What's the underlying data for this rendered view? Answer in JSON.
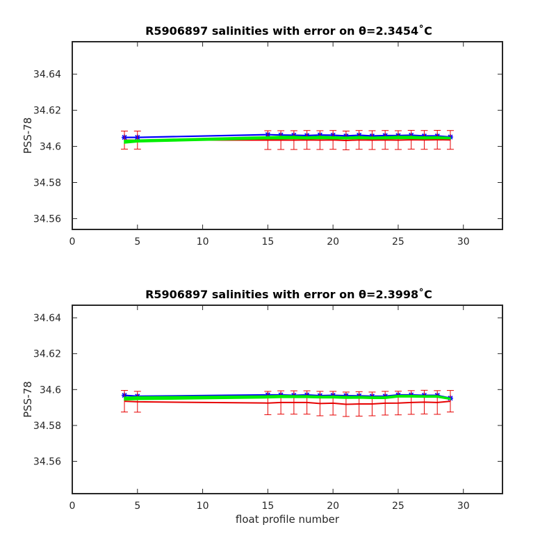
{
  "chart_data": [
    {
      "type": "line",
      "title": "R5906897 salinities with error on θ=2.3454˚C",
      "xlabel": "",
      "ylabel": "PSS-78",
      "xlim": [
        0,
        33
      ],
      "ylim": [
        34.554,
        34.658
      ],
      "xticks": [
        0,
        5,
        10,
        15,
        20,
        25,
        30
      ],
      "yticks": [
        34.56,
        34.58,
        34.6,
        34.62,
        34.64
      ],
      "ytick_labels": [
        "34.56",
        "34.58",
        "34.6",
        "34.62",
        "34.64"
      ],
      "grid": false,
      "x": [
        4,
        5,
        15,
        16,
        17,
        18,
        19,
        20,
        21,
        22,
        23,
        24,
        25,
        26,
        27,
        28,
        29
      ],
      "series": [
        {
          "color": "#0000ff",
          "marker": "asterisk",
          "values": [
            34.605,
            34.605,
            34.6065,
            34.6063,
            34.6062,
            34.606,
            34.6063,
            34.6062,
            34.6058,
            34.6062,
            34.6058,
            34.606,
            34.606,
            34.6062,
            34.6058,
            34.6058,
            34.6052
          ]
        },
        {
          "color": "#e60000",
          "error_bars": true,
          "values": [
            34.6035,
            34.6035,
            34.6035,
            34.6035,
            34.6035,
            34.6036,
            34.6035,
            34.6036,
            34.6033,
            34.6036,
            34.6035,
            34.6036,
            34.6035,
            34.6037,
            34.6036,
            34.6037,
            34.6036
          ],
          "errors": [
            0.005,
            0.005,
            0.0052,
            0.0052,
            0.0052,
            0.0052,
            0.0052,
            0.0052,
            0.0052,
            0.0052,
            0.0052,
            0.0052,
            0.0052,
            0.0052,
            0.0052,
            0.0052,
            0.0052
          ]
        },
        {
          "color": "#00ee00",
          "band": true,
          "lower": [
            34.6018,
            34.6024,
            34.6042,
            34.6042,
            34.6043,
            34.6041,
            34.6043,
            34.6042,
            34.6041,
            34.6043,
            34.6041,
            34.6042,
            34.6043,
            34.6043,
            34.6042,
            34.6043,
            34.6042
          ],
          "upper": [
            34.6034,
            34.6036,
            34.6054,
            34.6056,
            34.6056,
            34.6053,
            34.6056,
            34.6054,
            34.6052,
            34.6055,
            34.6052,
            34.6054,
            34.6056,
            34.6056,
            34.6053,
            34.6054,
            34.605
          ]
        }
      ]
    },
    {
      "type": "line",
      "title": "R5906897 salinities with error on θ=2.3998˚C",
      "xlabel": "float profile number",
      "ylabel": "PSS-78",
      "xlim": [
        0,
        33
      ],
      "ylim": [
        34.542,
        34.647
      ],
      "xticks": [
        0,
        5,
        10,
        15,
        20,
        25,
        30
      ],
      "yticks": [
        34.56,
        34.58,
        34.6,
        34.62,
        34.64
      ],
      "ytick_labels": [
        "34.56",
        "34.58",
        "34.6",
        "34.62",
        "34.64"
      ],
      "grid": false,
      "x": [
        4,
        5,
        15,
        16,
        17,
        18,
        19,
        20,
        21,
        22,
        23,
        24,
        25,
        26,
        27,
        28,
        29
      ],
      "series": [
        {
          "color": "#0000ff",
          "marker": "asterisk",
          "values": [
            34.5968,
            34.5963,
            34.597,
            34.597,
            34.5968,
            34.597,
            34.5966,
            34.5968,
            34.5966,
            34.5965,
            34.5963,
            34.5963,
            34.597,
            34.597,
            34.5968,
            34.5968,
            34.5952
          ]
        },
        {
          "color": "#e60000",
          "error_bars": true,
          "values": [
            34.5935,
            34.5932,
            34.5925,
            34.5928,
            34.5928,
            34.5928,
            34.5922,
            34.5924,
            34.5918,
            34.592,
            34.592,
            34.5924,
            34.5925,
            34.5928,
            34.593,
            34.5928,
            34.5935
          ],
          "errors": [
            0.006,
            0.0058,
            0.0065,
            0.0065,
            0.0065,
            0.0065,
            0.0068,
            0.0066,
            0.0068,
            0.0068,
            0.0066,
            0.0066,
            0.0066,
            0.0066,
            0.0066,
            0.0066,
            0.006
          ]
        },
        {
          "color": "#00ee00",
          "band": true,
          "lower": [
            34.5942,
            34.5944,
            34.5953,
            34.5955,
            34.5955,
            34.5955,
            34.5953,
            34.5953,
            34.5951,
            34.5952,
            34.595,
            34.595,
            34.5958,
            34.5958,
            34.5957,
            34.5957,
            34.5945
          ],
          "upper": [
            34.5958,
            34.596,
            34.5965,
            34.5967,
            34.5966,
            34.5966,
            34.5963,
            34.5964,
            34.5962,
            34.5962,
            34.596,
            34.596,
            34.5968,
            34.5968,
            34.5966,
            34.5966,
            34.5952
          ]
        }
      ]
    }
  ]
}
